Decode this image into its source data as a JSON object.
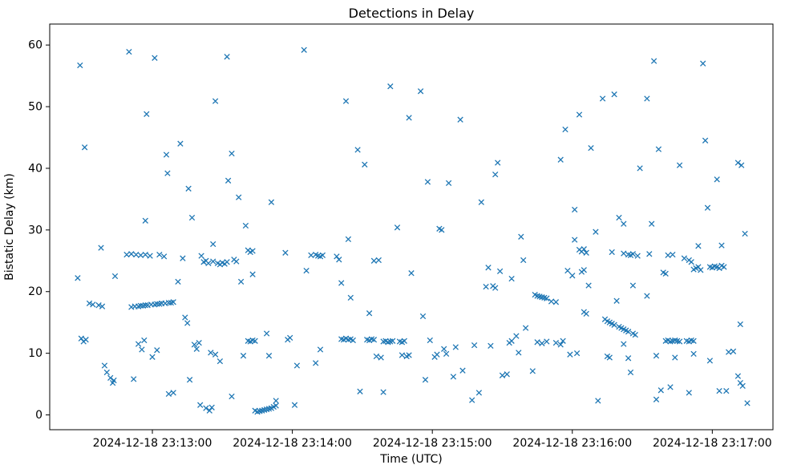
{
  "chart_data": {
    "type": "scatter",
    "title": "Detections in Delay",
    "xlabel": "Time (UTC)",
    "ylabel": "Bistatic Delay (km)",
    "marker": "x",
    "marker_color": "#1f77b4",
    "axis_color": "#000000",
    "grid": false,
    "legend": "none",
    "x_axis": {
      "unit": "seconds after 2024-12-18 23:12:00 UTC",
      "lim": [
        16,
        326
      ],
      "ticks": [
        {
          "value": 60,
          "label": "2024-12-18 23:13:00"
        },
        {
          "value": 120,
          "label": "2024-12-18 23:14:00"
        },
        {
          "value": 180,
          "label": "2024-12-18 23:15:00"
        },
        {
          "value": 240,
          "label": "2024-12-18 23:16:00"
        },
        {
          "value": 300,
          "label": "2024-12-18 23:17:00"
        }
      ]
    },
    "y_axis": {
      "lim": [
        -2.4,
        63.4
      ],
      "ticks": [
        {
          "value": 0,
          "label": "0"
        },
        {
          "value": 10,
          "label": "10"
        },
        {
          "value": 20,
          "label": "20"
        },
        {
          "value": 30,
          "label": "30"
        },
        {
          "value": 40,
          "label": "40"
        },
        {
          "value": 50,
          "label": "50"
        },
        {
          "value": 60,
          "label": "60"
        }
      ]
    },
    "points": [
      [
        29,
        56.7
      ],
      [
        31,
        43.4
      ],
      [
        28,
        22.2
      ],
      [
        29.5,
        12.4
      ],
      [
        30.5,
        11.9
      ],
      [
        31.5,
        12.2
      ],
      [
        33,
        18.1
      ],
      [
        34.5,
        17.9
      ],
      [
        37,
        17.8
      ],
      [
        38.5,
        17.6
      ],
      [
        38,
        27.1
      ],
      [
        39.5,
        8
      ],
      [
        40.5,
        6.9
      ],
      [
        42,
        6
      ],
      [
        43,
        5.2
      ],
      [
        43.5,
        5.6
      ],
      [
        44,
        22.5
      ],
      [
        49,
        26
      ],
      [
        50,
        58.9
      ],
      [
        51,
        26.1
      ],
      [
        53,
        26
      ],
      [
        55,
        25.9
      ],
      [
        57,
        26
      ],
      [
        59,
        25.8
      ],
      [
        52,
        5.8
      ],
      [
        54,
        11.5
      ],
      [
        55.5,
        10.6
      ],
      [
        56.5,
        12.1
      ],
      [
        57,
        31.5
      ],
      [
        57.5,
        48.8
      ],
      [
        61,
        57.9
      ],
      [
        60,
        9.4
      ],
      [
        62,
        10.5
      ],
      [
        63,
        26
      ],
      [
        65,
        25.7
      ],
      [
        66,
        42.2
      ],
      [
        66.5,
        39.2
      ],
      [
        67,
        3.4
      ],
      [
        69,
        3.6
      ],
      [
        51,
        17.5
      ],
      [
        52.5,
        17.6
      ],
      [
        54,
        17.6
      ],
      [
        55,
        17.7
      ],
      [
        56,
        17.7
      ],
      [
        57,
        17.8
      ],
      [
        58,
        17.8
      ],
      [
        59.5,
        17.9
      ],
      [
        61,
        17.9
      ],
      [
        62,
        18
      ],
      [
        63,
        18
      ],
      [
        64,
        18.1
      ],
      [
        65.5,
        18.1
      ],
      [
        67,
        18.2
      ],
      [
        68,
        18.2
      ],
      [
        69,
        18.3
      ],
      [
        71,
        21.6
      ],
      [
        72,
        44
      ],
      [
        73,
        25.4
      ],
      [
        74,
        15.8
      ],
      [
        75,
        14.9
      ],
      [
        75.5,
        36.7
      ],
      [
        76,
        5.7
      ],
      [
        77,
        32
      ],
      [
        78,
        11.4
      ],
      [
        79,
        10.7
      ],
      [
        80,
        11.7
      ],
      [
        80.5,
        1.6
      ],
      [
        81,
        25.8
      ],
      [
        82,
        24.8
      ],
      [
        83,
        25
      ],
      [
        84,
        24.6
      ],
      [
        83,
        1.1
      ],
      [
        84.5,
        0.7
      ],
      [
        85.5,
        1.2
      ],
      [
        85,
        10.1
      ],
      [
        87,
        9.8
      ],
      [
        87,
        50.9
      ],
      [
        86,
        27.7
      ],
      [
        86,
        24.9
      ],
      [
        88,
        24.6
      ],
      [
        89,
        24.4
      ],
      [
        90,
        24.7
      ],
      [
        91,
        24.5
      ],
      [
        92,
        24.8
      ],
      [
        89,
        8.7
      ],
      [
        92,
        58.1
      ],
      [
        92.5,
        38
      ],
      [
        94,
        3
      ],
      [
        94,
        42.4
      ],
      [
        95,
        25.2
      ],
      [
        96,
        24.9
      ],
      [
        97,
        35.3
      ],
      [
        98,
        21.6
      ],
      [
        99,
        9.6
      ],
      [
        100,
        30.7
      ],
      [
        101,
        26.7
      ],
      [
        102,
        26.4
      ],
      [
        103,
        26.6
      ],
      [
        101,
        12
      ],
      [
        102,
        11.9
      ],
      [
        103,
        12.1
      ],
      [
        104,
        12
      ],
      [
        103,
        22.8
      ],
      [
        104,
        0.7
      ],
      [
        105,
        0.5
      ],
      [
        106,
        0.6
      ],
      [
        107,
        0.7
      ],
      [
        108,
        0.8
      ],
      [
        109,
        0.9
      ],
      [
        110,
        1
      ],
      [
        111,
        1.1
      ],
      [
        112,
        1.3
      ],
      [
        113,
        1.5
      ],
      [
        109,
        13.2
      ],
      [
        110,
        9.6
      ],
      [
        111,
        34.5
      ],
      [
        113,
        2.3
      ],
      [
        117,
        26.3
      ],
      [
        118,
        12.2
      ],
      [
        119,
        12.5
      ],
      [
        121,
        1.6
      ],
      [
        122,
        8
      ],
      [
        125,
        59.2
      ],
      [
        126,
        23.4
      ],
      [
        128,
        25.9
      ],
      [
        130,
        26
      ],
      [
        131,
        25.8
      ],
      [
        132,
        25.7
      ],
      [
        133,
        25.9
      ],
      [
        130,
        8.4
      ],
      [
        132,
        10.6
      ],
      [
        139,
        25.7
      ],
      [
        140,
        25.2
      ],
      [
        141,
        21.4
      ],
      [
        141,
        12.3
      ],
      [
        142,
        12.2
      ],
      [
        143,
        12.4
      ],
      [
        144,
        12.2
      ],
      [
        145,
        12.3
      ],
      [
        146,
        12.1
      ],
      [
        143,
        50.9
      ],
      [
        144,
        28.5
      ],
      [
        145,
        19
      ],
      [
        148,
        43
      ],
      [
        149,
        3.8
      ],
      [
        151,
        40.6
      ],
      [
        152,
        12.2
      ],
      [
        153,
        12.1
      ],
      [
        154,
        12.3
      ],
      [
        155,
        12.2
      ],
      [
        153,
        16.5
      ],
      [
        155,
        25
      ],
      [
        157,
        25.1
      ],
      [
        156,
        9.5
      ],
      [
        158,
        9.3
      ],
      [
        159,
        11.9
      ],
      [
        160,
        12
      ],
      [
        161,
        11.8
      ],
      [
        162,
        11.9
      ],
      [
        163,
        12
      ],
      [
        159,
        3.7
      ],
      [
        162,
        53.3
      ],
      [
        165,
        30.4
      ],
      [
        166,
        11.9
      ],
      [
        167,
        11.8
      ],
      [
        168,
        12
      ],
      [
        167,
        9.7
      ],
      [
        169,
        9.5
      ],
      [
        170,
        9.7
      ],
      [
        170,
        48.2
      ],
      [
        171,
        23
      ],
      [
        175,
        52.5
      ],
      [
        176,
        16
      ],
      [
        177,
        5.7
      ],
      [
        178,
        37.8
      ],
      [
        179,
        12.1
      ],
      [
        181,
        9.4
      ],
      [
        182,
        9.8
      ],
      [
        183,
        30.2
      ],
      [
        184,
        30
      ],
      [
        185,
        10.7
      ],
      [
        186,
        9.9
      ],
      [
        187,
        37.6
      ],
      [
        189,
        6.2
      ],
      [
        190,
        11
      ],
      [
        192,
        47.9
      ],
      [
        193,
        7.2
      ],
      [
        197,
        2.4
      ],
      [
        198,
        11.3
      ],
      [
        200,
        3.6
      ],
      [
        201,
        34.5
      ],
      [
        203,
        20.8
      ],
      [
        204,
        23.9
      ],
      [
        205,
        11.2
      ],
      [
        206,
        20.9
      ],
      [
        207,
        20.6
      ],
      [
        207,
        39
      ],
      [
        208,
        40.9
      ],
      [
        209,
        23.3
      ],
      [
        210,
        6.4
      ],
      [
        212,
        6.6
      ],
      [
        213,
        11.7
      ],
      [
        214,
        12
      ],
      [
        214,
        22.1
      ],
      [
        216,
        12.8
      ],
      [
        217,
        10.1
      ],
      [
        218,
        28.9
      ],
      [
        219,
        25.1
      ],
      [
        220,
        14.1
      ],
      [
        223,
        7.1
      ],
      [
        224,
        19.5
      ],
      [
        225,
        19.3
      ],
      [
        226,
        19.2
      ],
      [
        227,
        19.1
      ],
      [
        228,
        19
      ],
      [
        229,
        18.9
      ],
      [
        225,
        11.8
      ],
      [
        227,
        11.6
      ],
      [
        229,
        11.9
      ],
      [
        231,
        18.4
      ],
      [
        233,
        18.3
      ],
      [
        233,
        11.7
      ],
      [
        235,
        11.4
      ],
      [
        236,
        12
      ],
      [
        235,
        41.4
      ],
      [
        237,
        46.3
      ],
      [
        238,
        23.4
      ],
      [
        240,
        22.6
      ],
      [
        239,
        9.8
      ],
      [
        241,
        33.3
      ],
      [
        241,
        28.4
      ],
      [
        242,
        10
      ],
      [
        243,
        48.7
      ],
      [
        243,
        26.8
      ],
      [
        244,
        26.5
      ],
      [
        245,
        26.9
      ],
      [
        246,
        26.3
      ],
      [
        244,
        23.2
      ],
      [
        245,
        23.5
      ],
      [
        245,
        16.7
      ],
      [
        246,
        16.4
      ],
      [
        247,
        21
      ],
      [
        248,
        43.3
      ],
      [
        250,
        29.7
      ],
      [
        251,
        2.3
      ],
      [
        253,
        51.3
      ],
      [
        254,
        15.5
      ],
      [
        255,
        15.2
      ],
      [
        256,
        15
      ],
      [
        257,
        14.8
      ],
      [
        258,
        14.6
      ],
      [
        260,
        14.3
      ],
      [
        261,
        14.1
      ],
      [
        262,
        13.9
      ],
      [
        263,
        13.7
      ],
      [
        264,
        13.5
      ],
      [
        266,
        13.2
      ],
      [
        267,
        13
      ],
      [
        255,
        9.5
      ],
      [
        256,
        9.3
      ],
      [
        257,
        26.4
      ],
      [
        258,
        52
      ],
      [
        259,
        18.5
      ],
      [
        260,
        32
      ],
      [
        262,
        31
      ],
      [
        262,
        11.5
      ],
      [
        262,
        26.2
      ],
      [
        264,
        26
      ],
      [
        265,
        25.9
      ],
      [
        266,
        26.1
      ],
      [
        268,
        25.8
      ],
      [
        264,
        9.2
      ],
      [
        265,
        6.9
      ],
      [
        266,
        21
      ],
      [
        269,
        40
      ],
      [
        272,
        19.3
      ],
      [
        272,
        51.3
      ],
      [
        273,
        26.1
      ],
      [
        274,
        31
      ],
      [
        275,
        57.4
      ],
      [
        276,
        2.5
      ],
      [
        276,
        9.6
      ],
      [
        277,
        43.1
      ],
      [
        278,
        4
      ],
      [
        279,
        23.1
      ],
      [
        280,
        22.9
      ],
      [
        280,
        12
      ],
      [
        281,
        12.1
      ],
      [
        282,
        11.9
      ],
      [
        283,
        12
      ],
      [
        284,
        12.1
      ],
      [
        285,
        12
      ],
      [
        286,
        11.9
      ],
      [
        281,
        25.9
      ],
      [
        283,
        26
      ],
      [
        282,
        4.5
      ],
      [
        284,
        9.3
      ],
      [
        286,
        40.5
      ],
      [
        288,
        25.4
      ],
      [
        290,
        25.1
      ],
      [
        291,
        24.8
      ],
      [
        292,
        23.6
      ],
      [
        293,
        23.8
      ],
      [
        294,
        24
      ],
      [
        295,
        23.5
      ],
      [
        289,
        12
      ],
      [
        290,
        11.9
      ],
      [
        291,
        12.1
      ],
      [
        292,
        12
      ],
      [
        290,
        3.6
      ],
      [
        292,
        9.9
      ],
      [
        294,
        27.4
      ],
      [
        296,
        57
      ],
      [
        297,
        44.5
      ],
      [
        298,
        33.6
      ],
      [
        299,
        8.8
      ],
      [
        299,
        24
      ],
      [
        300,
        23.9
      ],
      [
        301,
        24.1
      ],
      [
        302,
        24
      ],
      [
        303,
        23.8
      ],
      [
        304,
        24.2
      ],
      [
        305,
        24
      ],
      [
        302,
        38.2
      ],
      [
        303,
        3.9
      ],
      [
        306,
        3.9
      ],
      [
        307,
        10.2
      ],
      [
        309,
        10.3
      ],
      [
        311,
        40.9
      ],
      [
        312.5,
        40.5
      ],
      [
        312,
        14.7
      ],
      [
        311,
        6.3
      ],
      [
        312,
        5.2
      ],
      [
        313,
        4.7
      ],
      [
        314,
        29.4
      ],
      [
        315,
        1.9
      ],
      [
        304,
        27.5
      ]
    ]
  }
}
